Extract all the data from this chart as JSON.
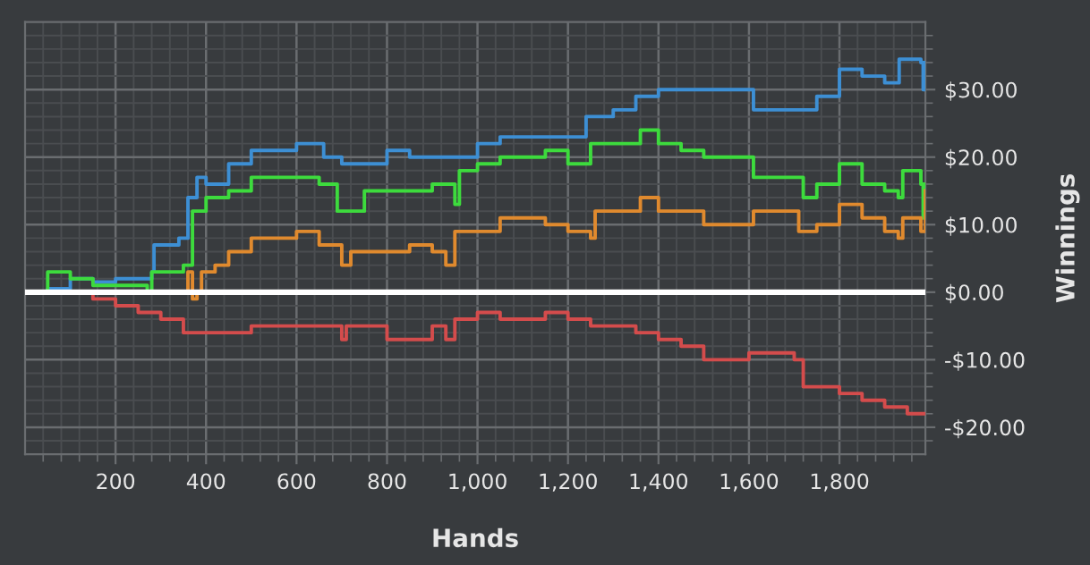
{
  "chart_data": {
    "type": "step",
    "xlabel": "Hands",
    "ylabel": "Winnings",
    "grid": true,
    "marker": "none",
    "line_style": "solid",
    "xlim": [
      0,
      1990
    ],
    "ylim": [
      -24,
      40
    ],
    "xticks": [
      200,
      400,
      600,
      800,
      {
        "value": 1000,
        "label": "1,000"
      },
      {
        "value": 1200,
        "label": "1,200"
      },
      {
        "value": 1400,
        "label": "1,400"
      },
      {
        "value": 1600,
        "label": "1,600"
      },
      {
        "value": 1800,
        "label": "1,800"
      },
      {
        "value": 40,
        "label": null
      },
      {
        "value": 80,
        "label": null
      },
      {
        "value": 120,
        "label": null
      },
      {
        "value": 160,
        "label": null
      },
      {
        "value": 240,
        "label": null
      },
      {
        "value": 280,
        "label": null
      },
      {
        "value": 320,
        "label": null
      },
      {
        "value": 360,
        "label": null
      },
      {
        "value": 440,
        "label": null
      },
      {
        "value": 480,
        "label": null
      },
      {
        "value": 520,
        "label": null
      },
      {
        "value": 560,
        "label": null
      },
      {
        "value": 640,
        "label": null
      },
      {
        "value": 680,
        "label": null
      },
      {
        "value": 720,
        "label": null
      },
      {
        "value": 760,
        "label": null
      },
      {
        "value": 840,
        "label": null
      },
      {
        "value": 880,
        "label": null
      },
      {
        "value": 920,
        "label": null
      },
      {
        "value": 960,
        "label": null
      },
      {
        "value": 1040,
        "label": null
      },
      {
        "value": 1080,
        "label": null
      },
      {
        "value": 1120,
        "label": null
      },
      {
        "value": 1160,
        "label": null
      },
      {
        "value": 1240,
        "label": null
      },
      {
        "value": 1280,
        "label": null
      },
      {
        "value": 1320,
        "label": null
      },
      {
        "value": 1360,
        "label": null
      },
      {
        "value": 1440,
        "label": null
      },
      {
        "value": 1480,
        "label": null
      },
      {
        "value": 1520,
        "label": null
      },
      {
        "value": 1560,
        "label": null
      },
      {
        "value": 1640,
        "label": null
      },
      {
        "value": 1680,
        "label": null
      },
      {
        "value": 1720,
        "label": null
      },
      {
        "value": 1760,
        "label": null
      },
      {
        "value": 1840,
        "label": null
      },
      {
        "value": 1880,
        "label": null
      },
      {
        "value": 1920,
        "label": null
      },
      {
        "value": 1960,
        "label": null
      }
    ],
    "yticks": [
      {
        "value": -20,
        "label": "-$20.00"
      },
      {
        "value": -10,
        "label": "-$10.00"
      },
      {
        "value": 0,
        "label": "$0.00"
      },
      {
        "value": 10,
        "label": "$10.00"
      },
      {
        "value": 20,
        "label": "$20.00"
      },
      {
        "value": 30,
        "label": "$30.00"
      },
      {
        "value": -22,
        "label": null
      },
      {
        "value": -18,
        "label": null
      },
      {
        "value": -16,
        "label": null
      },
      {
        "value": -14,
        "label": null
      },
      {
        "value": -12,
        "label": null
      },
      {
        "value": -8,
        "label": null
      },
      {
        "value": -6,
        "label": null
      },
      {
        "value": -4,
        "label": null
      },
      {
        "value": -2,
        "label": null
      },
      {
        "value": 2,
        "label": null
      },
      {
        "value": 4,
        "label": null
      },
      {
        "value": 6,
        "label": null
      },
      {
        "value": 8,
        "label": null
      },
      {
        "value": 12,
        "label": null
      },
      {
        "value": 14,
        "label": null
      },
      {
        "value": 16,
        "label": null
      },
      {
        "value": 18,
        "label": null
      },
      {
        "value": 22,
        "label": null
      },
      {
        "value": 24,
        "label": null
      },
      {
        "value": 26,
        "label": null
      },
      {
        "value": 28,
        "label": null
      },
      {
        "value": 32,
        "label": null
      },
      {
        "value": 34,
        "label": null
      },
      {
        "value": 36,
        "label": null
      },
      {
        "value": 38,
        "label": null
      }
    ],
    "ref_lines": [
      {
        "axis": "y",
        "value": 0,
        "label": null,
        "color": "#ffffff"
      }
    ],
    "series": [
      {
        "color": "#3d8fd4",
        "x": [
          0,
          50,
          100,
          150,
          200,
          280,
          285,
          340,
          360,
          380,
          400,
          450,
          500,
          550,
          600,
          660,
          700,
          800,
          850,
          950,
          1000,
          1050,
          1100,
          1200,
          1240,
          1300,
          1350,
          1400,
          1500,
          1600,
          1610,
          1700,
          1750,
          1800,
          1850,
          1900,
          1932,
          1980,
          1985,
          1990
        ],
        "values": [
          0,
          0.5,
          2,
          1.5,
          2,
          3,
          7,
          8,
          14,
          17,
          16,
          19,
          21,
          21,
          22,
          20,
          19,
          21,
          20,
          20,
          22,
          23,
          23,
          23,
          26,
          27,
          29,
          30,
          30,
          30,
          27,
          27,
          29,
          33,
          32,
          31,
          34.5,
          34,
          30,
          34
        ]
      },
      {
        "color": "#3ddb3d",
        "x": [
          0,
          50,
          100,
          150,
          200,
          270,
          280,
          350,
          370,
          400,
          450,
          500,
          580,
          650,
          690,
          750,
          800,
          850,
          900,
          950,
          960,
          1000,
          1050,
          1100,
          1150,
          1200,
          1240,
          1250,
          1300,
          1360,
          1400,
          1450,
          1500,
          1600,
          1610,
          1700,
          1720,
          1750,
          1800,
          1850,
          1900,
          1930,
          1940,
          1980,
          1985,
          1990
        ],
        "values": [
          0,
          3,
          2,
          1,
          1,
          0,
          3,
          4,
          12,
          14,
          15,
          17,
          17,
          16,
          12,
          15,
          15,
          15,
          16,
          13,
          18,
          19,
          20,
          20,
          21,
          19,
          19,
          22,
          22,
          24,
          22,
          21,
          20,
          20,
          17,
          17,
          14,
          16,
          19,
          16,
          15,
          14,
          18,
          16,
          11,
          16
        ]
      },
      {
        "color": "#e08a2e",
        "x": [
          0,
          350,
          360,
          370,
          380,
          390,
          420,
          450,
          500,
          550,
          600,
          650,
          700,
          720,
          800,
          850,
          900,
          930,
          950,
          1000,
          1050,
          1100,
          1150,
          1200,
          1250,
          1260,
          1300,
          1360,
          1400,
          1500,
          1600,
          1610,
          1700,
          1710,
          1750,
          1800,
          1850,
          1900,
          1930,
          1940,
          1980,
          1990
        ],
        "values": [
          0,
          0,
          3,
          -1,
          0,
          3,
          4,
          6,
          8,
          8,
          9,
          7,
          4,
          6,
          6,
          7,
          6,
          4,
          9,
          9,
          11,
          11,
          10,
          9,
          8,
          12,
          12,
          14,
          12,
          10,
          10,
          12,
          12,
          9,
          10,
          13,
          11,
          9,
          8,
          11,
          9,
          15
        ]
      },
      {
        "color": "#d44c4c",
        "x": [
          0,
          100,
          150,
          200,
          250,
          300,
          350,
          400,
          500,
          600,
          700,
          710,
          800,
          850,
          900,
          930,
          950,
          1000,
          1050,
          1100,
          1150,
          1200,
          1250,
          1300,
          1350,
          1400,
          1450,
          1500,
          1600,
          1650,
          1700,
          1720,
          1800,
          1850,
          1900,
          1950,
          1990
        ],
        "values": [
          0,
          0,
          -1,
          -2,
          -3,
          -4,
          -6,
          -6,
          -5,
          -5,
          -7,
          -5,
          -7,
          -7,
          -5,
          -7,
          -4,
          -3,
          -4,
          -4,
          -3,
          -4,
          -5,
          -5,
          -6,
          -7,
          -8,
          -10,
          -9,
          -9,
          -10,
          -14,
          -15,
          -16,
          -17,
          -18,
          -18
        ]
      }
    ]
  }
}
